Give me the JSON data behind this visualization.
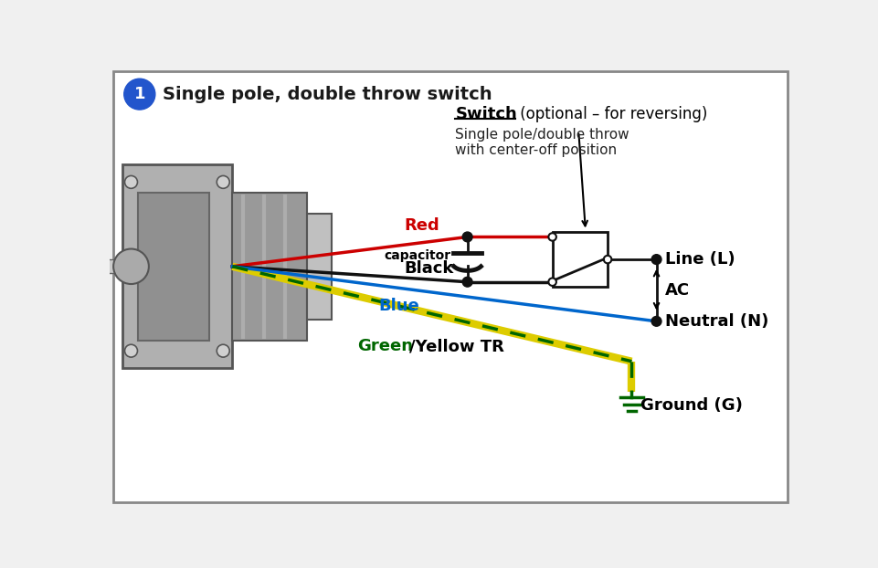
{
  "title": "Single pole, double throw switch",
  "bg_color": "#f0f0f0",
  "border_color": "#888888",
  "circle_badge_color": "#2255cc",
  "switch_label_bold": "Switch",
  "switch_label_normal": " (optional – for reversing)",
  "switch_sublabel1": "Single pole/double throw",
  "switch_sublabel2": "with center-off position",
  "wire_red_label": "Red",
  "wire_black_label": "Black",
  "wire_blue_label": "Blue",
  "wire_green_label": "Green",
  "wire_yellow_label": "/Yellow TR",
  "capacitor_label": "capacitor",
  "line_L_label": "Line (L)",
  "neutral_N_label": "Neutral (N)",
  "ground_G_label": "Ground (G)",
  "ac_label": "AC",
  "colors": {
    "red": "#cc0000",
    "black": "#111111",
    "blue": "#0066cc",
    "green": "#007700",
    "yellow": "#ddcc00",
    "dark_green": "#006600"
  }
}
